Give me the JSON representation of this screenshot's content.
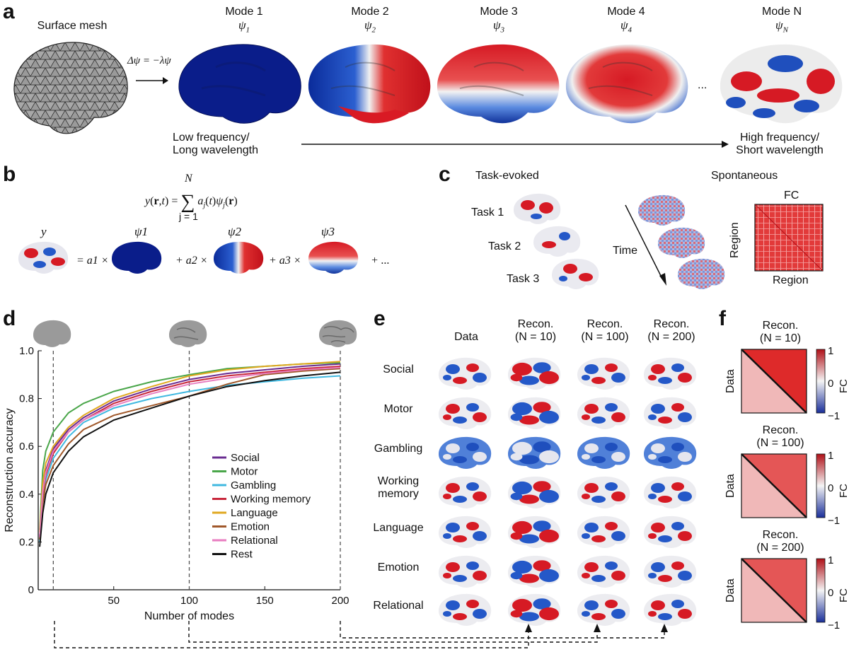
{
  "panel_a": {
    "letter": "a",
    "surface_mesh": "Surface mesh",
    "equation": "Δψ = −λψ",
    "modes": [
      {
        "title": "Mode 1",
        "symbol": "ψ",
        "sub": "1"
      },
      {
        "title": "Mode 2",
        "symbol": "ψ",
        "sub": "2"
      },
      {
        "title": "Mode 3",
        "symbol": "ψ",
        "sub": "3"
      },
      {
        "title": "Mode 4",
        "symbol": "ψ",
        "sub": "4"
      },
      {
        "title": "Mode N",
        "symbol": "ψ",
        "sub": "N"
      }
    ],
    "ellipsis": "...",
    "low_freq": [
      "Low frequency/",
      "Long wavelength"
    ],
    "high_freq": [
      "High frequency/",
      "Short wavelength"
    ]
  },
  "panel_b": {
    "letter": "b",
    "equation": "y(r,t) = Σ a_j(t)ψ_j(r)",
    "sum_top": "N",
    "sum_bottom": "j = 1",
    "terms": [
      "y",
      "ψ1",
      "ψ2",
      "ψ3"
    ],
    "ops": [
      "= a1 ×",
      "+ a2 ×",
      "+ a3 ×",
      "+ ..."
    ]
  },
  "panel_c": {
    "letter": "c",
    "task_evoked": "Task-evoked",
    "spontaneous": "Spontaneous",
    "tasks": [
      "Task 1",
      "Task 2",
      "Task 3"
    ],
    "time": "Time",
    "fc": "FC",
    "region_y": "Region",
    "region_x": "Region"
  },
  "panel_d": {
    "letter": "d",
    "ylabel": "Reconstruction accuracy",
    "xlabel": "Number of modes"
  },
  "panel_e": {
    "letter": "e",
    "columns": [
      "Data",
      "Recon.\n(N = 10)",
      "Recon.\n(N = 100)",
      "Recon.\n(N = 200)"
    ],
    "col_line1": [
      "Data",
      "Recon.",
      "Recon.",
      "Recon."
    ],
    "col_line2": [
      "",
      "(N = 10)",
      "(N = 100)",
      "(N = 200)"
    ],
    "rows": [
      "Social",
      "Motor",
      "Gambling",
      "Working\nmemory",
      "Language",
      "Emotion",
      "Relational"
    ]
  },
  "panel_f": {
    "letter": "f",
    "blocks": [
      {
        "title": "Recon.",
        "sub": "(N = 10)"
      },
      {
        "title": "Recon.",
        "sub": "(N = 100)"
      },
      {
        "title": "Recon.",
        "sub": "(N = 200)"
      }
    ],
    "data_label": "Data",
    "cbar_label": "FC",
    "cbar_ticks": [
      "1",
      "0",
      "−1"
    ]
  },
  "chart_data": {
    "type": "line",
    "xlabel": "Number of modes",
    "ylabel": "Reconstruction accuracy",
    "xlim": [
      0,
      200
    ],
    "ylim": [
      0,
      1.0
    ],
    "xticks": [
      50,
      100,
      150,
      200
    ],
    "yticks": [
      0,
      0.2,
      0.4,
      0.6,
      0.8,
      1.0
    ],
    "ytick_labels": [
      "0",
      "0.2",
      "0.4",
      "0.6",
      "0.8",
      "1.0"
    ],
    "xtick_labels": [
      "50",
      "100",
      "150",
      "200"
    ],
    "vlines": [
      10,
      100,
      200
    ],
    "legend_position": "bottom-right",
    "x": [
      1,
      3,
      5,
      10,
      20,
      30,
      50,
      75,
      100,
      125,
      150,
      175,
      200
    ],
    "series": [
      {
        "name": "Social",
        "color": "#6a2c91",
        "values": [
          0.22,
          0.42,
          0.5,
          0.59,
          0.67,
          0.72,
          0.79,
          0.84,
          0.88,
          0.905,
          0.92,
          0.935,
          0.945
        ]
      },
      {
        "name": "Motor",
        "color": "#4aa64a",
        "values": [
          0.25,
          0.5,
          0.58,
          0.66,
          0.74,
          0.78,
          0.83,
          0.87,
          0.9,
          0.925,
          0.935,
          0.945,
          0.95
        ]
      },
      {
        "name": "Gambling",
        "color": "#40b8e0",
        "values": [
          0.2,
          0.38,
          0.46,
          0.55,
          0.64,
          0.7,
          0.76,
          0.8,
          0.83,
          0.855,
          0.87,
          0.885,
          0.895
        ]
      },
      {
        "name": "Working memory",
        "color": "#c8283c",
        "values": [
          0.22,
          0.4,
          0.48,
          0.57,
          0.66,
          0.71,
          0.78,
          0.83,
          0.87,
          0.895,
          0.91,
          0.925,
          0.935
        ]
      },
      {
        "name": "Language",
        "color": "#e0a820",
        "values": [
          0.24,
          0.45,
          0.53,
          0.6,
          0.68,
          0.73,
          0.8,
          0.85,
          0.895,
          0.92,
          0.935,
          0.945,
          0.955
        ]
      },
      {
        "name": "Emotion",
        "color": "#a0582a",
        "values": [
          0.21,
          0.36,
          0.44,
          0.52,
          0.61,
          0.67,
          0.73,
          0.77,
          0.81,
          0.86,
          0.9,
          0.915,
          0.925
        ]
      },
      {
        "name": "Relational",
        "color": "#e87ec0",
        "values": [
          0.22,
          0.41,
          0.49,
          0.58,
          0.66,
          0.71,
          0.77,
          0.82,
          0.86,
          0.885,
          0.905,
          0.92,
          0.93
        ]
      },
      {
        "name": "Rest",
        "color": "#111111",
        "values": [
          0.18,
          0.32,
          0.4,
          0.49,
          0.58,
          0.64,
          0.71,
          0.76,
          0.81,
          0.85,
          0.875,
          0.895,
          0.91
        ]
      }
    ]
  },
  "colors": {
    "deep_blue": "#0a1d8a",
    "red": "#d71f26",
    "blue": "#1f4fbd",
    "white": "#f2f2f2",
    "mesh_gray": "#8c8c8c"
  }
}
